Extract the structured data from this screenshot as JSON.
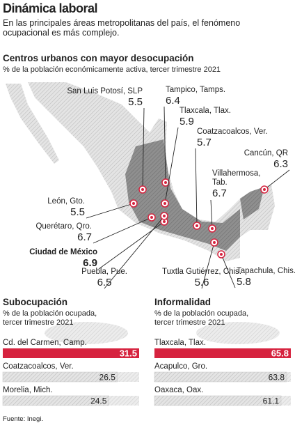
{
  "header": {
    "title": "Dinámica laboral",
    "subtitle": "En las principales áreas metropolitanas del país, el fenómeno ocupacional es más complejo."
  },
  "map": {
    "title": "Centros urbanos con mayor desocupación",
    "subtitle": "% de la población económicamente activa, tercer trimestre 2021",
    "cities": [
      {
        "name": "San Luis Potosí, SLP",
        "value": 5.5
      },
      {
        "name": "Tampico, Tamps.",
        "value": 6.4
      },
      {
        "name": "Tlaxcala, Tlax.",
        "value": 5.9
      },
      {
        "name": "Coatzacoalcos, Ver.",
        "value": 5.7
      },
      {
        "name": "Cancún, QR",
        "value": 6.3
      },
      {
        "name": "Villahermosa, Tab.",
        "value": 6.7
      },
      {
        "name": "León, Gto.",
        "value": 5.5
      },
      {
        "name": "Querétaro, Qro.",
        "value": 6.7
      },
      {
        "name": "Ciudad de México",
        "value": 6.9
      },
      {
        "name": "Puebla, Pue.",
        "value": 6.5
      },
      {
        "name": "Tuxtla Gutiérrez, Chis.",
        "value": 5.6
      },
      {
        "name": "Tapachula, Chis.",
        "value": 5.8
      }
    ]
  },
  "chart_data": [
    {
      "type": "bar",
      "orientation": "horizontal",
      "title": "Subocupación",
      "subtitle": "% de la población ocupada, tercer trimestre 2021",
      "categories": [
        "Cd. del Carmen, Camp.",
        "Coatzacoalcos, Ver.",
        "Morelia, Mich."
      ],
      "values": [
        31.5,
        26.5,
        24.5
      ],
      "colors": [
        "#d6233f",
        "#c4c4c4",
        "#c4c4c4"
      ],
      "xlim": [
        0,
        31.5
      ]
    },
    {
      "type": "bar",
      "orientation": "horizontal",
      "title": "Informalidad",
      "subtitle": "% de la población ocupada, tercer trimestre 2021",
      "categories": [
        "Tlaxcala, Tlax.",
        "Acapulco, Gro.",
        "Oaxaca, Oax."
      ],
      "values": [
        65.8,
        63.8,
        61.1
      ],
      "colors": [
        "#d6233f",
        "#c4c4c4",
        "#c4c4c4"
      ],
      "xlim": [
        0,
        65.8
      ]
    }
  ],
  "source": "Fuente: Inegi."
}
